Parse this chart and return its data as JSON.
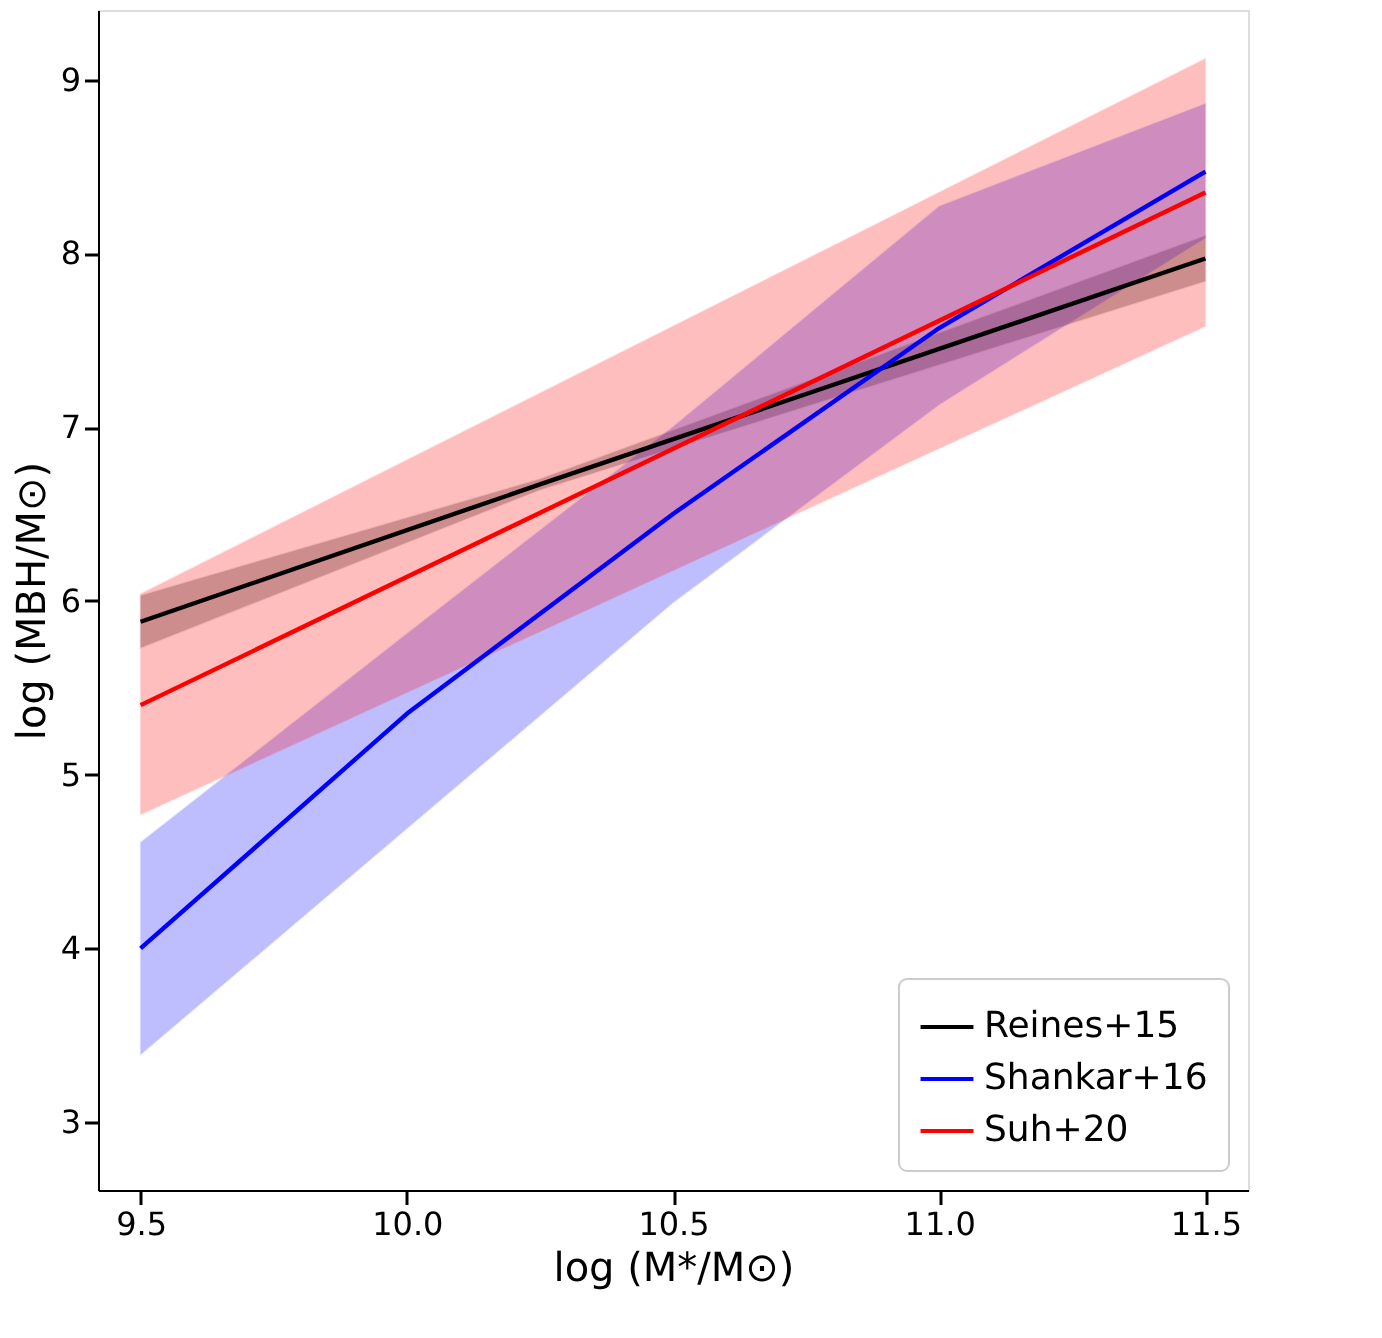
{
  "chart_data": {
    "type": "line",
    "xlabel": "log (M*/M⊙)",
    "ylabel": "log (MBH/M⊙)",
    "xlim": [
      9.42,
      11.58
    ],
    "ylim": [
      2.61,
      9.4
    ],
    "xticks": [
      {
        "value": 9.5,
        "label": "9.5"
      },
      {
        "value": 10,
        "label": "10.0"
      },
      {
        "value": 10.5,
        "label": "10.5"
      },
      {
        "value": 11,
        "label": "11.0"
      },
      {
        "value": 11.5,
        "label": "11.5"
      }
    ],
    "yticks": [
      {
        "value": 3,
        "label": "3"
      },
      {
        "value": 4,
        "label": "4"
      },
      {
        "value": 5,
        "label": "5"
      },
      {
        "value": 6,
        "label": "6"
      },
      {
        "value": 7,
        "label": "7"
      },
      {
        "value": 8,
        "label": "8"
      },
      {
        "value": 9,
        "label": "9"
      }
    ],
    "grid": false,
    "legend": "bottom right",
    "line_style": "solid",
    "marker": "none",
    "series": [
      {
        "name": "Reines+15",
        "color": "#000000",
        "x": [
          9.5,
          10.25,
          11.5
        ],
        "values": [
          5.88,
          6.67,
          7.97
        ],
        "lower": [
          5.73,
          6.64,
          7.84
        ],
        "upper": [
          6.03,
          6.7,
          8.1
        ]
      },
      {
        "name": "Shankar+16",
        "color": "#0000ff",
        "x": [
          9.5,
          10.0,
          10.5,
          11.0,
          11.5
        ],
        "values": [
          4.0,
          5.35,
          6.5,
          7.57,
          8.47
        ],
        "lower": [
          3.39,
          4.69,
          5.99,
          7.13,
          8.09
        ],
        "upper": [
          4.61,
          5.81,
          7.0,
          8.27,
          8.86
        ]
      },
      {
        "name": "Suh+20",
        "color": "#ff0000",
        "x": [
          9.5,
          11.5
        ],
        "values": [
          5.4,
          8.35
        ],
        "lower": [
          4.77,
          7.58
        ],
        "upper": [
          6.04,
          9.12
        ]
      }
    ]
  }
}
